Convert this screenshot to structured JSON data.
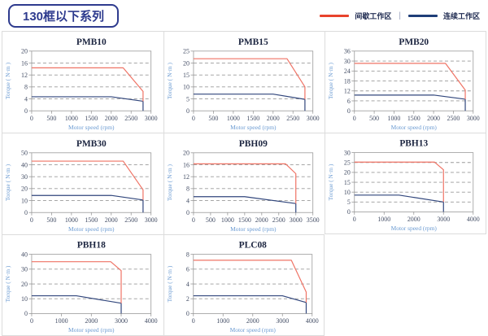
{
  "header": {
    "title": "130框以下系列",
    "legend_separator": "|",
    "legend": [
      {
        "label": "间歇工作区",
        "color": "#e8432c"
      },
      {
        "label": "连续工作区",
        "color": "#1f3e78"
      }
    ]
  },
  "colors": {
    "intermittent_line": "#ef7365",
    "continuous_line": "#31467c",
    "grid_line": "#9a9a9a",
    "plot_border": "#999999",
    "cell_border": "#dcdcdc",
    "title_text": "#1c2540",
    "axis_label_text": "#6b9bd2"
  },
  "chart_data": [
    {
      "type": "line",
      "title": "PMB10",
      "xlabel": "Motor speed (rpm)",
      "ylabel": "Torque ( N·m )",
      "xlim": [
        0,
        3000
      ],
      "ylim": [
        0,
        20
      ],
      "xticks": [
        0,
        500,
        1000,
        1500,
        2000,
        2500,
        3000
      ],
      "yticks": [
        0,
        4,
        8,
        12,
        16,
        20
      ],
      "grid": true,
      "series": [
        {
          "name": "连续工作区",
          "color": "#31467c",
          "points": [
            [
              0,
              4.7
            ],
            [
              2000,
              4.7
            ],
            [
              2800,
              3.2
            ],
            [
              2800,
              0
            ]
          ]
        },
        {
          "name": "间歇工作区",
          "color": "#ef7365",
          "points": [
            [
              0,
              14.4
            ],
            [
              2300,
              14.4
            ],
            [
              2800,
              6.5
            ],
            [
              2800,
              3.2
            ]
          ]
        }
      ]
    },
    {
      "type": "line",
      "title": "PMB15",
      "xlabel": "Motor speed (rpm)",
      "ylabel": "Torque ( N·m )",
      "xlim": [
        0,
        3000
      ],
      "ylim": [
        0,
        25
      ],
      "xticks": [
        0,
        500,
        1000,
        1500,
        2000,
        2500,
        3000
      ],
      "yticks": [
        0,
        5,
        10,
        15,
        20,
        25
      ],
      "grid": true,
      "series": [
        {
          "name": "连续工作区",
          "color": "#31467c",
          "points": [
            [
              0,
              7
            ],
            [
              2000,
              7
            ],
            [
              2800,
              4.8
            ],
            [
              2800,
              0
            ]
          ]
        },
        {
          "name": "间歇工作区",
          "color": "#ef7365",
          "points": [
            [
              0,
              21.8
            ],
            [
              2350,
              21.8
            ],
            [
              2800,
              10
            ],
            [
              2800,
              4.8
            ]
          ]
        }
      ]
    },
    {
      "type": "line",
      "title": "PMB20",
      "xlabel": "Motor speed (rpm)",
      "ylabel": "Torque ( N·m )",
      "xlim": [
        0,
        3000
      ],
      "ylim": [
        0,
        36
      ],
      "xticks": [
        0,
        500,
        1000,
        1500,
        2000,
        2500,
        3000
      ],
      "yticks": [
        0,
        6,
        12,
        18,
        24,
        30,
        36
      ],
      "grid": true,
      "series": [
        {
          "name": "连续工作区",
          "color": "#31467c",
          "points": [
            [
              0,
              9.5
            ],
            [
              2000,
              9.5
            ],
            [
              2800,
              7
            ],
            [
              2800,
              0
            ]
          ]
        },
        {
          "name": "间歇工作区",
          "color": "#ef7365",
          "points": [
            [
              0,
              28.6
            ],
            [
              2300,
              28.6
            ],
            [
              2800,
              12.5
            ],
            [
              2800,
              7
            ]
          ]
        }
      ]
    },
    {
      "type": "line",
      "title": "PMB30",
      "xlabel": "Motor speed (rpm)",
      "ylabel": "Torque ( N·m )",
      "xlim": [
        0,
        3000
      ],
      "ylim": [
        0,
        50
      ],
      "xticks": [
        0,
        500,
        1000,
        1500,
        2000,
        2500,
        3000
      ],
      "yticks": [
        0,
        10,
        20,
        30,
        40,
        50
      ],
      "grid": true,
      "series": [
        {
          "name": "连续工作区",
          "color": "#31467c",
          "points": [
            [
              0,
              14.3
            ],
            [
              2000,
              14.3
            ],
            [
              2800,
              10.5
            ],
            [
              2800,
              0
            ]
          ]
        },
        {
          "name": "间歇工作区",
          "color": "#ef7365",
          "points": [
            [
              0,
              43
            ],
            [
              2300,
              43
            ],
            [
              2800,
              19
            ],
            [
              2800,
              10.5
            ]
          ]
        }
      ]
    },
    {
      "type": "line",
      "title": "PBH09",
      "xlabel": "Motor speed (rpm)",
      "ylabel": "Torque ( N·m )",
      "xlim": [
        0,
        3500
      ],
      "ylim": [
        0,
        20
      ],
      "xticks": [
        0,
        500,
        1000,
        1500,
        2000,
        2500,
        3000,
        3500
      ],
      "yticks": [
        0,
        4,
        8,
        12,
        16,
        20
      ],
      "grid": true,
      "series": [
        {
          "name": "连续工作区",
          "color": "#31467c",
          "points": [
            [
              0,
              5.3
            ],
            [
              1500,
              5.3
            ],
            [
              3000,
              3
            ],
            [
              3000,
              0
            ]
          ]
        },
        {
          "name": "间歇工作区",
          "color": "#ef7365",
          "points": [
            [
              0,
              16.3
            ],
            [
              2700,
              16.3
            ],
            [
              3000,
              13
            ],
            [
              3000,
              3
            ]
          ]
        }
      ]
    },
    {
      "type": "line",
      "title": "PBH13",
      "xlabel": "Motor speed (rpm)",
      "ylabel": "Torque ( N·m )",
      "xlim": [
        0,
        4000
      ],
      "ylim": [
        0,
        30
      ],
      "xticks": [
        0,
        1000,
        2000,
        3000,
        4000
      ],
      "yticks": [
        0,
        5,
        10,
        15,
        20,
        25,
        30
      ],
      "grid": true,
      "series": [
        {
          "name": "连续工作区",
          "color": "#31467c",
          "points": [
            [
              0,
              8.5
            ],
            [
              1500,
              8.5
            ],
            [
              3000,
              5
            ],
            [
              3000,
              0
            ]
          ]
        },
        {
          "name": "间歇工作区",
          "color": "#ef7365",
          "points": [
            [
              0,
              25.2
            ],
            [
              2700,
              25.2
            ],
            [
              3000,
              21.3
            ],
            [
              3000,
              5
            ]
          ]
        }
      ]
    },
    {
      "type": "line",
      "title": "PBH18",
      "xlabel": "Motor speed (rpm)",
      "ylabel": "Torque ( N·m )",
      "xlim": [
        0,
        4000
      ],
      "ylim": [
        0,
        40
      ],
      "xticks": [
        0,
        1000,
        2000,
        3000,
        4000
      ],
      "yticks": [
        0,
        10,
        20,
        30,
        40
      ],
      "grid": true,
      "series": [
        {
          "name": "连续工作区",
          "color": "#31467c",
          "points": [
            [
              0,
              12
            ],
            [
              1500,
              12
            ],
            [
              3000,
              7
            ],
            [
              3000,
              0
            ]
          ]
        },
        {
          "name": "间歇工作区",
          "color": "#ef7365",
          "points": [
            [
              0,
              35
            ],
            [
              2650,
              35
            ],
            [
              3000,
              29
            ],
            [
              3000,
              7
            ]
          ]
        }
      ]
    },
    {
      "type": "line",
      "title": "PLC08",
      "xlabel": "Motor speed (rpm)",
      "ylabel": "Torque ( N·m )",
      "xlim": [
        0,
        4000
      ],
      "ylim": [
        0,
        8
      ],
      "xticks": [
        0,
        1000,
        2000,
        3000,
        4000
      ],
      "yticks": [
        0,
        2,
        4,
        6,
        8
      ],
      "grid": true,
      "series": [
        {
          "name": "连续工作区",
          "color": "#31467c",
          "points": [
            [
              0,
              2.4
            ],
            [
              3000,
              2.4
            ],
            [
              3800,
              1.5
            ],
            [
              3800,
              0
            ]
          ]
        },
        {
          "name": "间歇工作区",
          "color": "#ef7365",
          "points": [
            [
              0,
              7.2
            ],
            [
              3300,
              7.2
            ],
            [
              3800,
              2.9
            ],
            [
              3800,
              1.5
            ]
          ]
        }
      ]
    }
  ]
}
